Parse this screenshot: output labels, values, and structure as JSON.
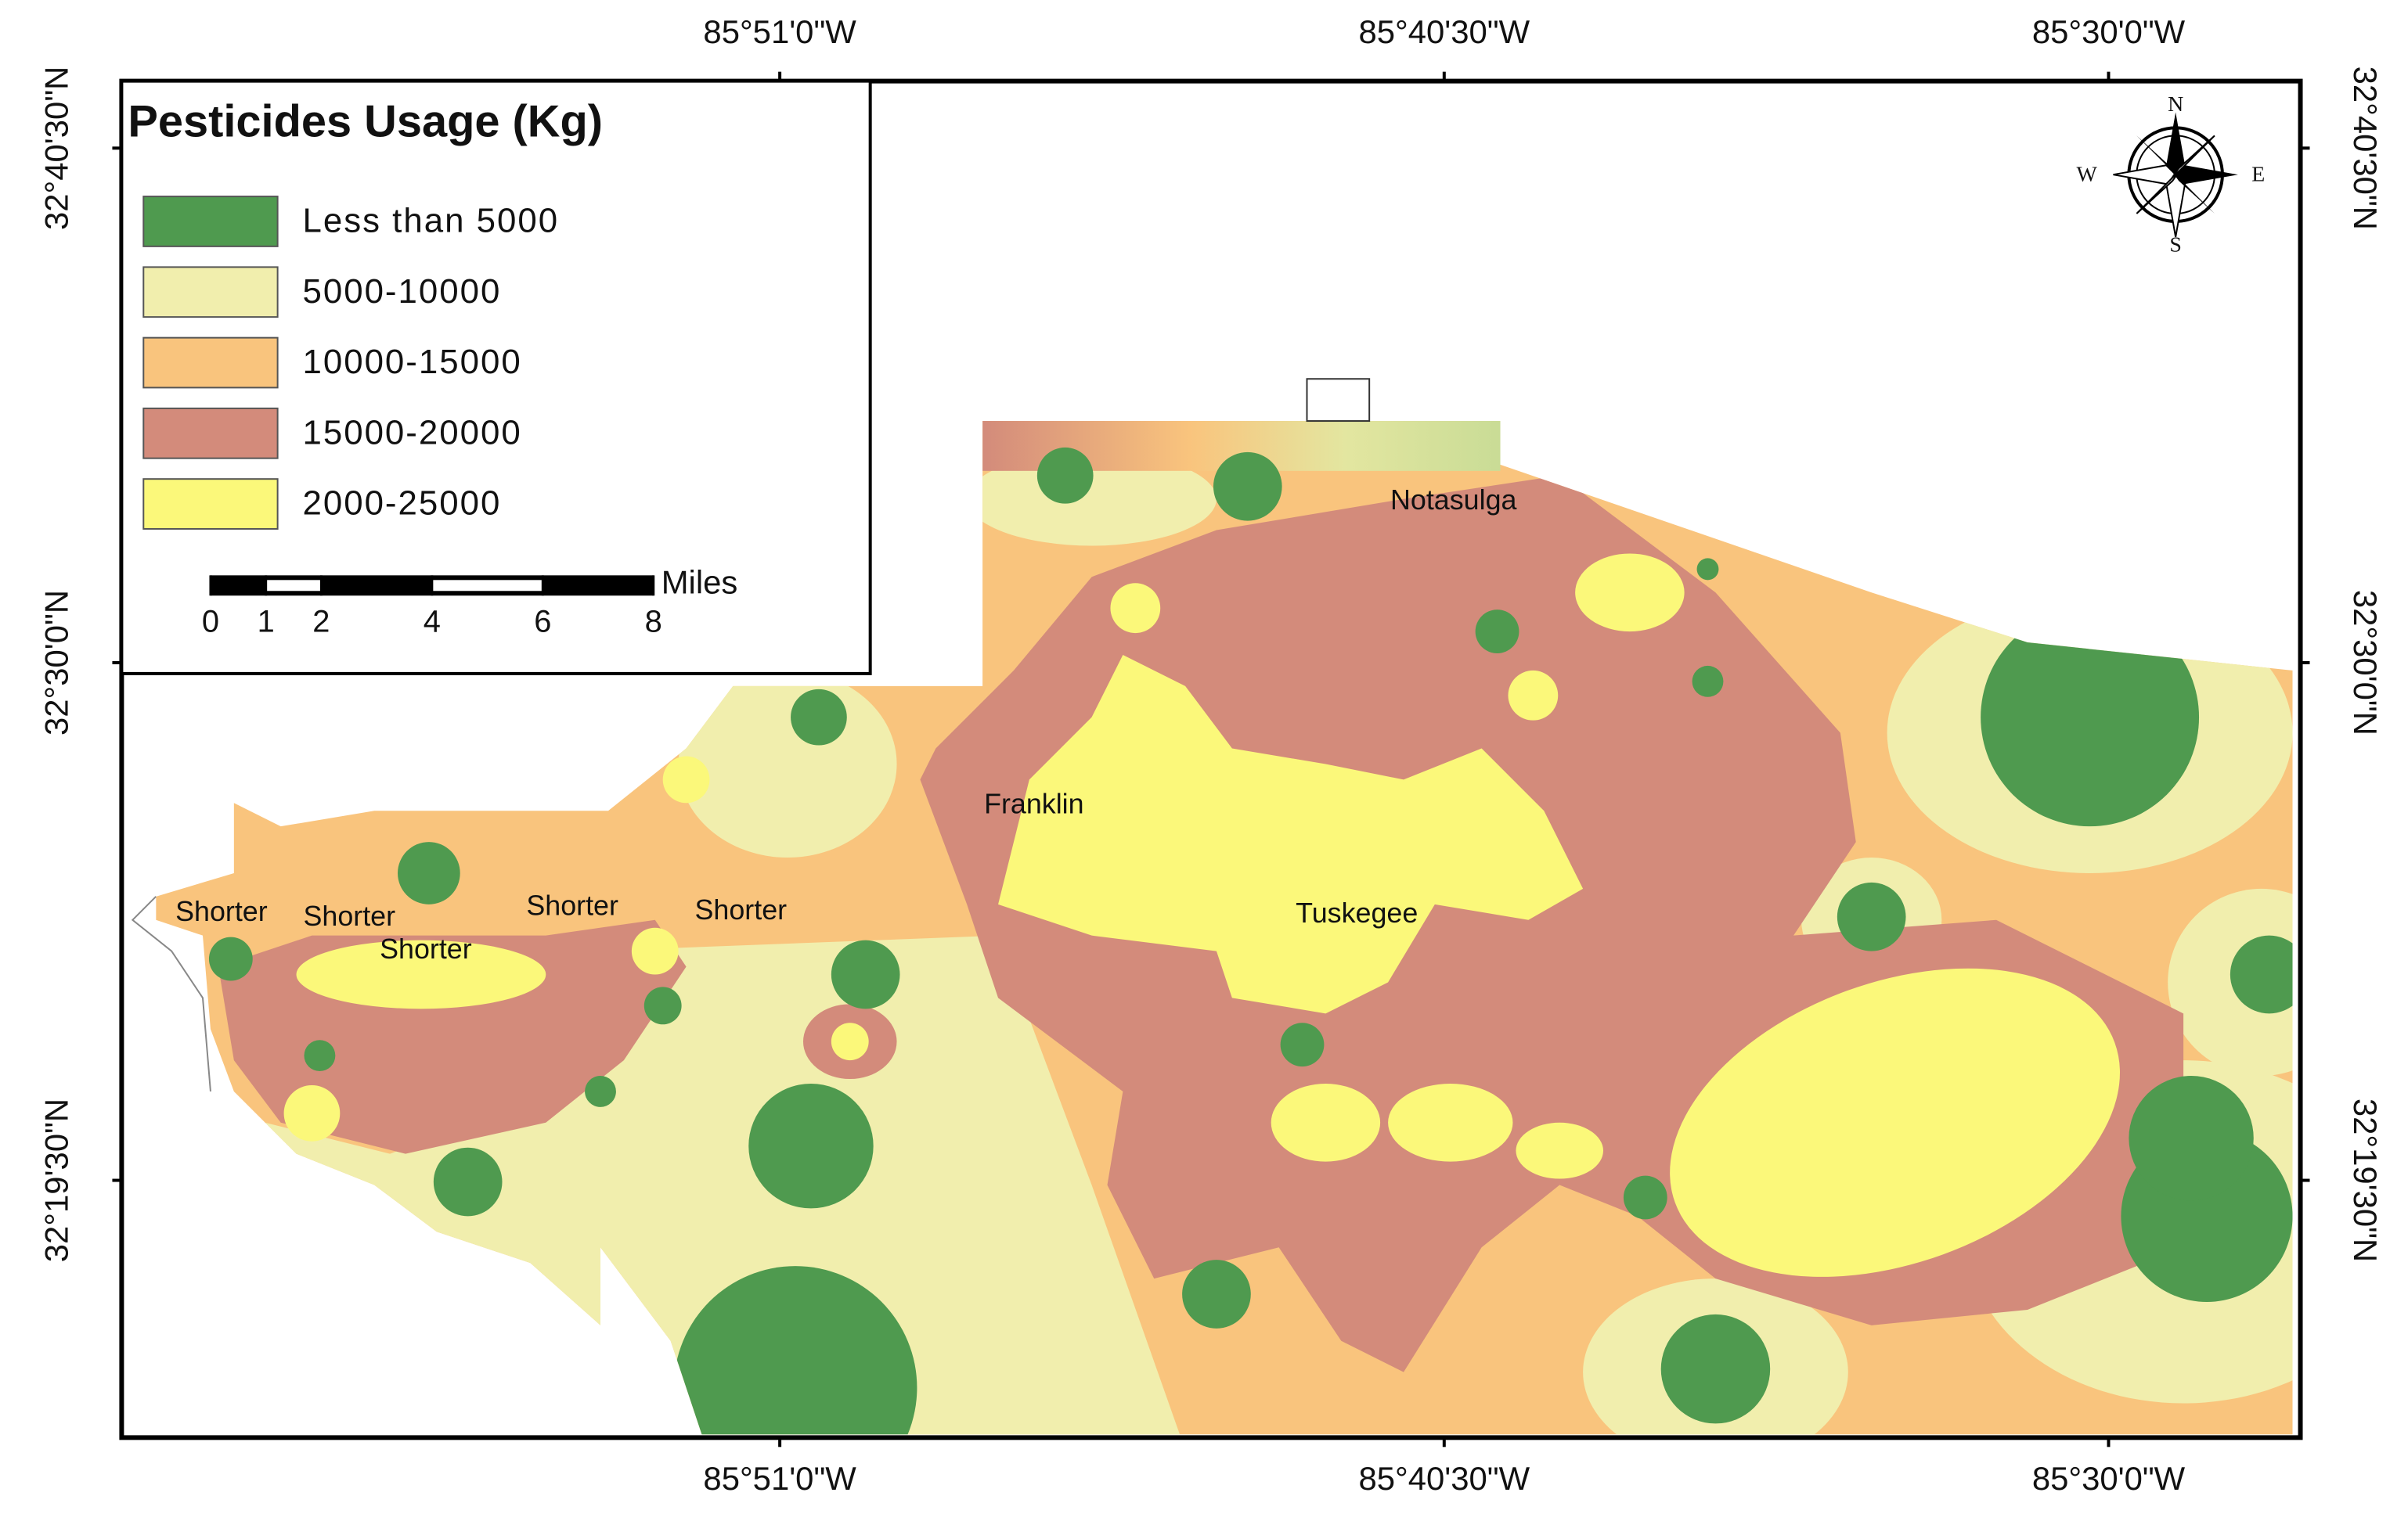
{
  "map": {
    "title": "Pesticides Usage (Kg)",
    "legend": [
      {
        "label": "Less than 5000",
        "color": "#4f9a4f"
      },
      {
        "label": "5000-10000",
        "color": "#f1eead"
      },
      {
        "label": "10000-15000",
        "color": "#f9c47d"
      },
      {
        "label": "15000-20000",
        "color": "#d38b7b"
      },
      {
        "label": "2000-25000",
        "color": "#fbf87a"
      }
    ],
    "scale_bar": {
      "unit": "Miles",
      "ticks": [
        0,
        1,
        2,
        4,
        6,
        8
      ]
    },
    "longitude_labels": [
      "85°51'0\"W",
      "85°40'30\"W",
      "85°30'0\"W"
    ],
    "latitude_labels": [
      "32°40'30\"N",
      "32°30'0\"N",
      "32°19'30\"N"
    ],
    "compass": {
      "north": "N",
      "east": "E",
      "south": "S",
      "west": "W"
    },
    "places": [
      "Notasulga",
      "Franklin",
      "Tuskegee",
      "Shorter",
      "Shorter",
      "Shorter",
      "Shorter",
      "Shorter"
    ]
  }
}
